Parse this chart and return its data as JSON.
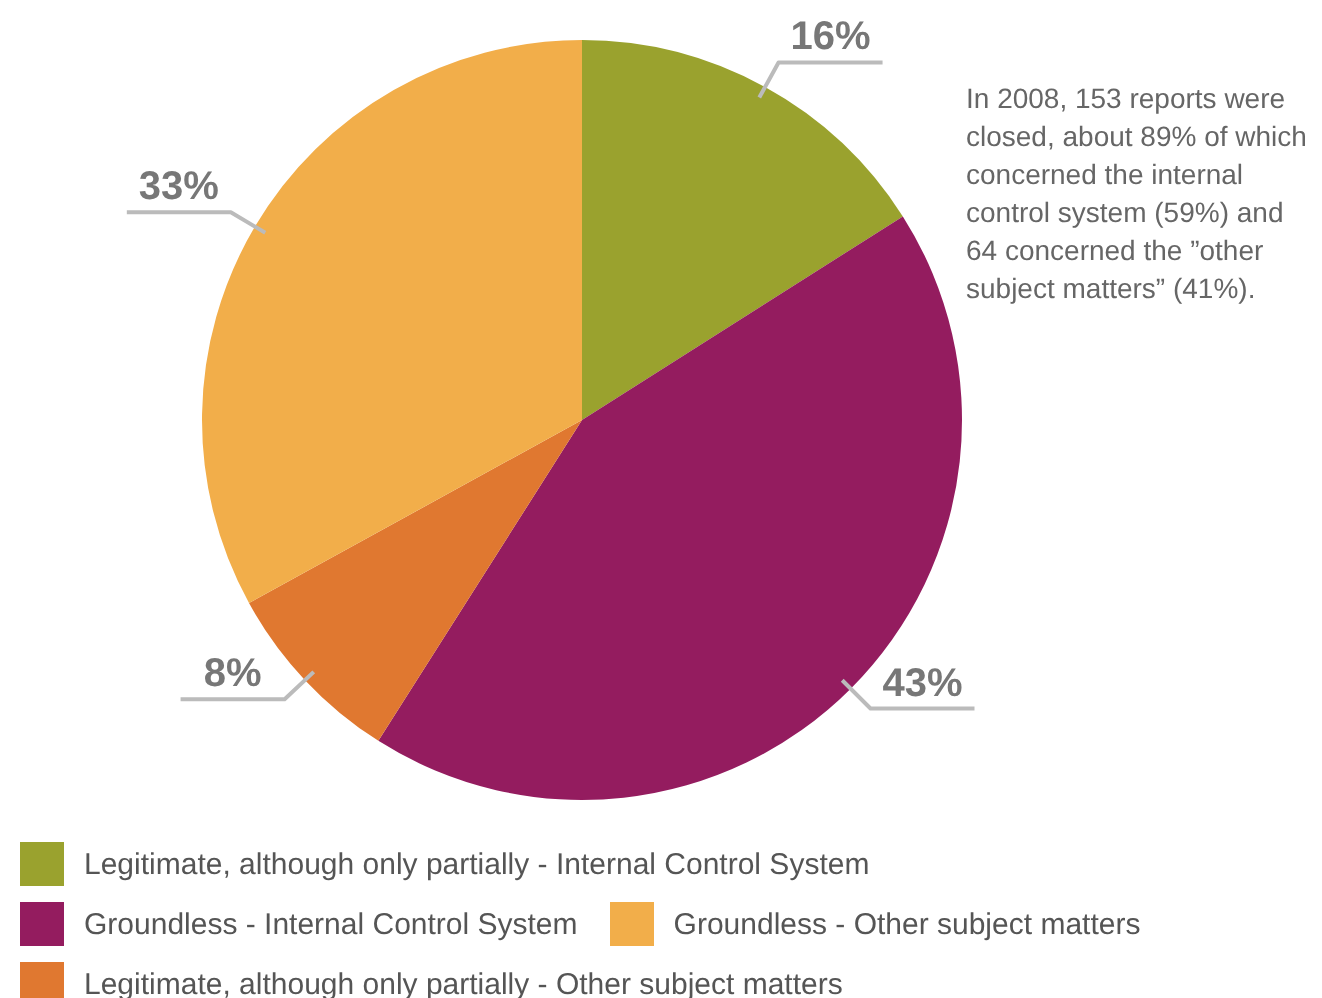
{
  "chart_data": {
    "type": "pie",
    "categories": [
      "Legitimate, although only partially - Internal Control System",
      "Groundless - Internal Control System",
      "Legitimate, although only partially - Other subject matters",
      "Groundless - Other subject matters"
    ],
    "values": [
      16,
      43,
      8,
      33
    ],
    "colors": [
      "#9aa22e",
      "#941c5f",
      "#e07830",
      "#f2ae4a"
    ],
    "value_labels": [
      "16%",
      "43%",
      "8%",
      "33%"
    ],
    "legend": "bottom",
    "annotations": [
      "In 2008, 153 reports were closed, about 89% of which concerned the internal control system (59%) and 64 concerned the ”other subject matters” (41%)."
    ]
  }
}
